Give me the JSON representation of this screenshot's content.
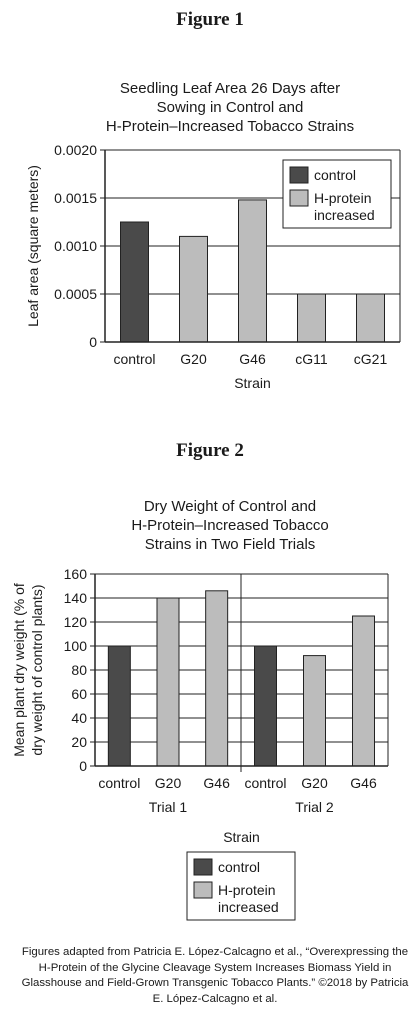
{
  "figure1": {
    "heading": "Figure 1",
    "title": "Seedling Leaf Area 26 Days after\nSowing in Control and\nH-Protein–Increased Tobacco Strains"
  },
  "figure2": {
    "heading": "Figure 2",
    "title": "Dry Weight of Control and\nH-Protein–Increased Tobacco\nStrains in Two Field Trials"
  },
  "credit": "Figures adapted from Patricia E. López-Calcagno et al., “Overexpressing the H-Protein of the Glycine Cleavage System Increases Biomass Yield in Glasshouse and Field-Grown Transgenic Tobacco Plants.” ©2018 by Patricia E. López-Calcagno et al.",
  "colors": {
    "control": "#4a4a4a",
    "hprotein": "#bcbcbc",
    "axis": "#222222"
  },
  "chart_data": [
    {
      "type": "bar",
      "title": "Seedling Leaf Area 26 Days after Sowing in Control and H-Protein–Increased Tobacco Strains",
      "xlabel": "Strain",
      "ylabel": "Leaf area (square meters)",
      "categories": [
        "control",
        "G20",
        "G46",
        "cG11",
        "cG21"
      ],
      "values": [
        0.00125,
        0.0011,
        0.00148,
        0.0005,
        0.0005
      ],
      "groups": [
        "control",
        "hprotein",
        "hprotein",
        "hprotein",
        "hprotein"
      ],
      "ylim": [
        0,
        0.002
      ],
      "yticks": [
        "0",
        "0.0005",
        "0.0010",
        "0.0015",
        "0.0020"
      ],
      "ytick_values": [
        0,
        0.0005,
        0.001,
        0.0015,
        0.002
      ],
      "grid": true,
      "legend": {
        "position": "top-right",
        "entries": [
          "control",
          "H-protein\nincreased"
        ]
      }
    },
    {
      "type": "bar",
      "title": "Dry Weight of Control and H-Protein–Increased Tobacco Strains in Two Field Trials",
      "xlabel": "Strain",
      "ylabel": "Mean plant dry weight (% of dry weight of control plants)",
      "ylabel_lines": [
        "Mean plant dry weight (% of",
        "dry weight of control plants)"
      ],
      "panels": [
        {
          "name": "Trial 1",
          "categories": [
            "control",
            "G20",
            "G46"
          ],
          "values": [
            100,
            140,
            146
          ],
          "groups": [
            "control",
            "hprotein",
            "hprotein"
          ]
        },
        {
          "name": "Trial 2",
          "categories": [
            "control",
            "G20",
            "G46"
          ],
          "values": [
            100,
            92,
            125
          ],
          "groups": [
            "control",
            "hprotein",
            "hprotein"
          ]
        }
      ],
      "ylim": [
        0,
        160
      ],
      "yticks": [
        "0",
        "20",
        "40",
        "60",
        "80",
        "100",
        "120",
        "140",
        "160"
      ],
      "ytick_values": [
        0,
        20,
        40,
        60,
        80,
        100,
        120,
        140,
        160
      ],
      "grid": true,
      "legend": {
        "position": "bottom",
        "entries": [
          "control",
          "H-protein\nincreased"
        ]
      }
    }
  ]
}
